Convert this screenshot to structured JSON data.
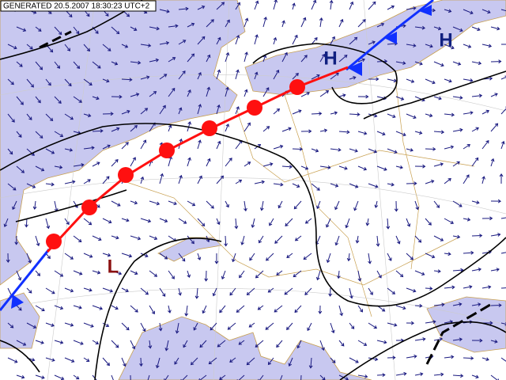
{
  "header": {
    "generated": "GENERATED 20.5.2007 18:30:23 UTC+2"
  },
  "pressure_centers": [
    {
      "label": "H"
    },
    {
      "label": "H"
    },
    {
      "label": "L"
    }
  ]
}
